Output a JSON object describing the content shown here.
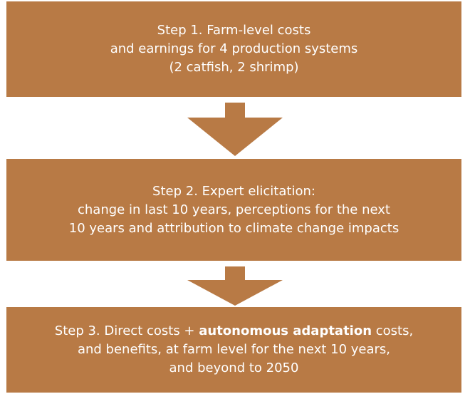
{
  "steps": [
    {
      "lines": [
        "Step 1. Farm-level costs",
        "and earnings for 4 production systems",
        "(2 catfish, 2 shrimp)"
      ]
    },
    {
      "lines": [
        "Step 2. Expert elicitation:",
        "change in last 10 years, perceptions for the next",
        "10 years and attribution to climate change impacts"
      ]
    },
    {
      "lines": [
        {
          "before": "Step 3. Direct costs + ",
          "bold": "autonomous adaptation",
          "after": " costs,"
        },
        "and benefits, at farm level for the next 10 years,",
        "and beyond to 2050"
      ]
    }
  ]
}
